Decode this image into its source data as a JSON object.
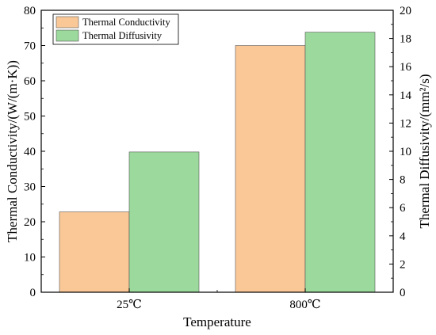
{
  "chart_data": {
    "type": "bar",
    "categories": [
      "25℃",
      "800℃"
    ],
    "xlabel": "Temperature",
    "ylabel": "Thermal Conductivity/(W/(m·K))",
    "y2label": "Thermal Diffusivity/(mm²/s)",
    "ylim": [
      0,
      80
    ],
    "y2lim": [
      0,
      20
    ],
    "yticks": [
      0,
      10,
      20,
      30,
      40,
      50,
      60,
      70,
      80
    ],
    "y2ticks": [
      0,
      2,
      4,
      6,
      8,
      10,
      12,
      14,
      16,
      18,
      20
    ],
    "grid": false,
    "legend_position": "top-left",
    "series": [
      {
        "name": "Thermal Conductivity",
        "axis": "left",
        "color": "#FAC897",
        "values": [
          22.8,
          70.0
        ]
      },
      {
        "name": "Thermal Diffusivity",
        "axis": "right",
        "color": "#9CD99C",
        "values": [
          9.95,
          18.45
        ]
      }
    ]
  }
}
